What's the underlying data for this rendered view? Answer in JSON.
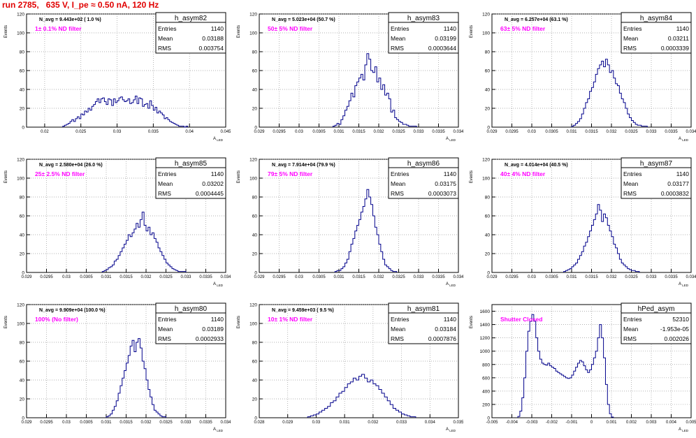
{
  "title": "run 2785,   635 V, I_pe ≈ 0.50 nA, 120 Hz",
  "stat_labels": {
    "entries": "Entries",
    "mean": "Mean",
    "rms": "RMS"
  },
  "chart_data": [
    {
      "type": "histogram",
      "name": "h_asym82",
      "entries": "1140",
      "mean": "0.03188",
      "rms": "0.003754",
      "navg": "N_avg = 9.443e+02 ( 1.0 %)",
      "note": "1± 0.1% ND filter",
      "xlim": [
        0.0175,
        0.045
      ],
      "ylim": [
        0,
        120
      ],
      "xticks": [
        "0.02",
        "0.025",
        "0.03",
        "0.035",
        "0.04",
        "0.045"
      ],
      "xtick_values": [
        0.02,
        0.025,
        0.03,
        0.035,
        0.04,
        0.045
      ],
      "yticks": [
        0,
        20,
        40,
        60,
        80,
        100,
        120
      ],
      "ylabel": "Events",
      "xlabel": "A_LED",
      "bin_start": 0.0225,
      "bin_width": 0.00025,
      "counts": [
        1,
        2,
        3,
        4,
        6,
        8,
        6,
        9,
        11,
        9,
        14,
        13,
        17,
        16,
        20,
        18,
        22,
        24,
        27,
        30,
        26,
        30,
        31,
        27,
        24,
        30,
        29,
        23,
        30,
        26,
        28,
        31,
        32,
        29,
        27,
        28,
        30,
        25,
        26,
        29,
        33,
        25,
        31,
        30,
        22,
        24,
        25,
        20,
        28,
        23,
        18,
        21,
        15,
        17,
        15,
        13,
        9,
        10,
        8,
        6,
        5,
        4,
        3,
        2,
        1,
        1,
        1,
        0,
        1
      ]
    },
    {
      "type": "histogram",
      "name": "h_asym83",
      "entries": "1140",
      "mean": "0.03199",
      "rms": "0.0003644",
      "navg": "N_avg = 5.023e+04 (50.7 %)",
      "note": "50± 5% ND filter",
      "xlim": [
        0.029,
        0.034
      ],
      "ylim": [
        0,
        120
      ],
      "xticks": [
        "0.029",
        "0.0295",
        "0.03",
        "0.0305",
        "0.031",
        "0.0315",
        "0.032",
        "0.0325",
        "0.033",
        "0.0335",
        "0.034"
      ],
      "xtick_values": [
        0.029,
        0.0295,
        0.03,
        0.0305,
        0.031,
        0.0315,
        0.032,
        0.0325,
        0.033,
        0.0335,
        0.034
      ],
      "yticks": [
        0,
        20,
        40,
        60,
        80,
        100,
        120
      ],
      "ylabel": "Events",
      "xlabel": "A_LED",
      "bin_start": 0.03085,
      "bin_width": 5e-05,
      "counts": [
        1,
        2,
        4,
        3,
        8,
        12,
        18,
        22,
        28,
        36,
        32,
        44,
        48,
        52,
        56,
        50,
        66,
        78,
        72,
        60,
        58,
        64,
        48,
        52,
        40,
        45,
        34,
        36,
        30,
        16,
        18,
        10,
        8,
        6,
        5,
        3,
        3,
        2,
        1,
        1,
        1,
        1
      ]
    },
    {
      "type": "histogram",
      "name": "h_asym84",
      "entries": "1140",
      "mean": "0.03211",
      "rms": "0.0003339",
      "navg": "N_avg = 6.257e+04 (63.1 %)",
      "note": "63± 5% ND filter",
      "xlim": [
        0.029,
        0.034
      ],
      "ylim": [
        0,
        120
      ],
      "xticks": [
        "0.029",
        "0.0295",
        "0.03",
        "0.0305",
        "0.031",
        "0.0315",
        "0.032",
        "0.0325",
        "0.033",
        "0.0335",
        "0.034"
      ],
      "xtick_values": [
        0.029,
        0.0295,
        0.03,
        0.0305,
        0.031,
        0.0315,
        0.032,
        0.0325,
        0.033,
        0.0335,
        0.034
      ],
      "yticks": [
        0,
        20,
        40,
        60,
        80,
        100,
        120
      ],
      "ylabel": "Events",
      "xlabel": "A_LED",
      "bin_start": 0.031,
      "bin_width": 5e-05,
      "counts": [
        1,
        2,
        4,
        6,
        9,
        14,
        20,
        26,
        30,
        38,
        42,
        48,
        56,
        62,
        66,
        70,
        64,
        72,
        66,
        58,
        60,
        52,
        46,
        44,
        36,
        30,
        26,
        20,
        14,
        10,
        7,
        5,
        3,
        2,
        2,
        1,
        1,
        1
      ]
    },
    {
      "type": "histogram",
      "name": "h_asym85",
      "entries": "1140",
      "mean": "0.03202",
      "rms": "0.0004445",
      "navg": "N_avg = 2.580e+04 (26.0 %)",
      "note": "25± 2.5% ND filter",
      "xlim": [
        0.029,
        0.034
      ],
      "ylim": [
        0,
        120
      ],
      "xticks": [
        "0.029",
        "0.0295",
        "0.03",
        "0.0305",
        "0.031",
        "0.0315",
        "0.032",
        "0.0325",
        "0.033",
        "0.0335",
        "0.034"
      ],
      "xtick_values": [
        0.029,
        0.0295,
        0.03,
        0.0305,
        0.031,
        0.0315,
        0.032,
        0.0325,
        0.033,
        0.0335,
        0.034
      ],
      "yticks": [
        0,
        20,
        40,
        60,
        80,
        100,
        120
      ],
      "ylabel": "Events",
      "xlabel": "A_LED",
      "bin_start": 0.0309,
      "bin_width": 5e-05,
      "counts": [
        1,
        2,
        3,
        5,
        6,
        8,
        12,
        14,
        18,
        22,
        26,
        30,
        34,
        40,
        38,
        42,
        46,
        52,
        48,
        56,
        64,
        50,
        44,
        48,
        40,
        42,
        36,
        32,
        26,
        22,
        18,
        14,
        10,
        8,
        6,
        4,
        3,
        2,
        1,
        1,
        1,
        1
      ]
    },
    {
      "type": "histogram",
      "name": "h_asym86",
      "entries": "1140",
      "mean": "0.03175",
      "rms": "0.0003073",
      "navg": "N_avg = 7.914e+04 (79.9 %)",
      "note": "79± 5% ND filter",
      "xlim": [
        0.029,
        0.034
      ],
      "ylim": [
        0,
        120
      ],
      "xticks": [
        "0.029",
        "0.0295",
        "0.03",
        "0.0305",
        "0.031",
        "0.0315",
        "0.032",
        "0.0325",
        "0.033",
        "0.0335",
        "0.034"
      ],
      "xtick_values": [
        0.029,
        0.0295,
        0.03,
        0.0305,
        0.031,
        0.0315,
        0.032,
        0.0325,
        0.033,
        0.0335,
        0.034
      ],
      "yticks": [
        0,
        20,
        40,
        60,
        80,
        100,
        120
      ],
      "ylabel": "Events",
      "xlabel": "A_LED",
      "bin_start": 0.0309,
      "bin_width": 5e-05,
      "counts": [
        1,
        2,
        2,
        4,
        6,
        10,
        14,
        22,
        30,
        36,
        44,
        50,
        56,
        64,
        70,
        78,
        88,
        80,
        72,
        60,
        48,
        40,
        30,
        22,
        14,
        8,
        6,
        4,
        2,
        1,
        1
      ]
    },
    {
      "type": "histogram",
      "name": "h_asym87",
      "entries": "1140",
      "mean": "0.03177",
      "rms": "0.0003832",
      "navg": "N_avg = 4.014e+04 (40.5 %)",
      "note": "40± 4% ND filter",
      "xlim": [
        0.029,
        0.034
      ],
      "ylim": [
        0,
        120
      ],
      "xticks": [
        "0.029",
        "0.0295",
        "0.03",
        "0.0305",
        "0.031",
        "0.0315",
        "0.032",
        "0.0325",
        "0.033",
        "0.0335",
        "0.034"
      ],
      "xtick_values": [
        0.029,
        0.0295,
        0.03,
        0.0305,
        0.031,
        0.0315,
        0.032,
        0.0325,
        0.033,
        0.0335,
        0.034
      ],
      "yticks": [
        0,
        20,
        40,
        60,
        80,
        100,
        120
      ],
      "ylabel": "Events",
      "xlabel": "A_LED",
      "bin_start": 0.0308,
      "bin_width": 5e-05,
      "counts": [
        1,
        2,
        3,
        4,
        6,
        8,
        10,
        14,
        18,
        22,
        28,
        32,
        38,
        44,
        50,
        56,
        62,
        72,
        66,
        54,
        62,
        58,
        50,
        44,
        38,
        30,
        26,
        20,
        14,
        10,
        8,
        6,
        4,
        3,
        2,
        2,
        1,
        1
      ]
    },
    {
      "type": "histogram",
      "name": "h_asym80",
      "entries": "1140",
      "mean": "0.03189",
      "rms": "0.0002933",
      "navg": "N_avg = 9.909e+04 (100.0 %)",
      "note": "100% (No filter)",
      "xlim": [
        0.029,
        0.034
      ],
      "ylim": [
        0,
        120
      ],
      "xticks": [
        "0.029",
        "0.0295",
        "0.03",
        "0.0305",
        "0.031",
        "0.0315",
        "0.032",
        "0.0325",
        "0.033",
        "0.0335",
        "0.034"
      ],
      "xtick_values": [
        0.029,
        0.0295,
        0.03,
        0.0305,
        0.031,
        0.0315,
        0.032,
        0.0325,
        0.033,
        0.0335,
        0.034
      ],
      "yticks": [
        0,
        20,
        40,
        60,
        80,
        100,
        120
      ],
      "ylabel": "Events",
      "xlabel": "A_LED",
      "bin_start": 0.031,
      "bin_width": 5e-05,
      "counts": [
        1,
        2,
        4,
        8,
        12,
        18,
        26,
        34,
        42,
        50,
        58,
        66,
        76,
        82,
        70,
        80,
        84,
        74,
        60,
        52,
        40,
        30,
        22,
        14,
        8,
        6,
        4,
        2,
        1,
        1
      ]
    },
    {
      "type": "histogram",
      "name": "h_asym81",
      "entries": "1140",
      "mean": "0.03184",
      "rms": "0.0007876",
      "navg": "N_avg = 9.459e+03 ( 9.5 %)",
      "note": "10± 1% ND filter",
      "xlim": [
        0.028,
        0.035
      ],
      "ylim": [
        0,
        120
      ],
      "xticks": [
        "0.028",
        "0.029",
        "0.03",
        "0.031",
        "0.032",
        "0.033",
        "0.034",
        "0.035"
      ],
      "xtick_values": [
        0.028,
        0.029,
        0.03,
        0.031,
        0.032,
        0.033,
        0.034,
        0.035
      ],
      "yticks": [
        0,
        20,
        40,
        60,
        80,
        100,
        120
      ],
      "ylabel": "Events",
      "xlabel": "A_LED",
      "bin_start": 0.0297,
      "bin_width": 0.0001,
      "counts": [
        1,
        2,
        3,
        4,
        6,
        8,
        10,
        12,
        16,
        18,
        22,
        26,
        28,
        32,
        36,
        38,
        42,
        40,
        44,
        46,
        42,
        38,
        40,
        36,
        34,
        30,
        26,
        22,
        18,
        14,
        10,
        8,
        6,
        4,
        3,
        2,
        1,
        1
      ]
    },
    {
      "type": "histogram",
      "name": "hPed_asym",
      "entries": "52310",
      "mean": "-1.953e-05",
      "rms": "0.002026",
      "navg": "",
      "note": "Shutter Closed",
      "xlim": [
        -0.005,
        0.005
      ],
      "ylim": [
        0,
        1700
      ],
      "xticks": [
        "-0.005",
        "-0.004",
        "-0.003",
        "-0.002",
        "-0.001",
        "0",
        "0.001",
        "0.002",
        "0.003",
        "0.004",
        "0.005"
      ],
      "xtick_values": [
        -0.005,
        -0.004,
        -0.003,
        -0.002,
        -0.001,
        0,
        0.001,
        0.002,
        0.003,
        0.004,
        0.005
      ],
      "yticks": [
        0,
        200,
        400,
        600,
        800,
        1000,
        1200,
        1400,
        1600
      ],
      "ylabel": "Events",
      "xlabel": "A_LED",
      "bin_start": -0.0037,
      "bin_width": 0.0001,
      "counts": [
        20,
        100,
        300,
        600,
        1000,
        1300,
        1450,
        1550,
        1450,
        1200,
        1000,
        880,
        820,
        800,
        790,
        820,
        780,
        760,
        740,
        700,
        680,
        660,
        640,
        620,
        600,
        590,
        600,
        640,
        700,
        760,
        820,
        860,
        840,
        780,
        720,
        680,
        720,
        800,
        900,
        1000,
        1200,
        1400,
        1200,
        900,
        500,
        200,
        60,
        10
      ]
    }
  ]
}
